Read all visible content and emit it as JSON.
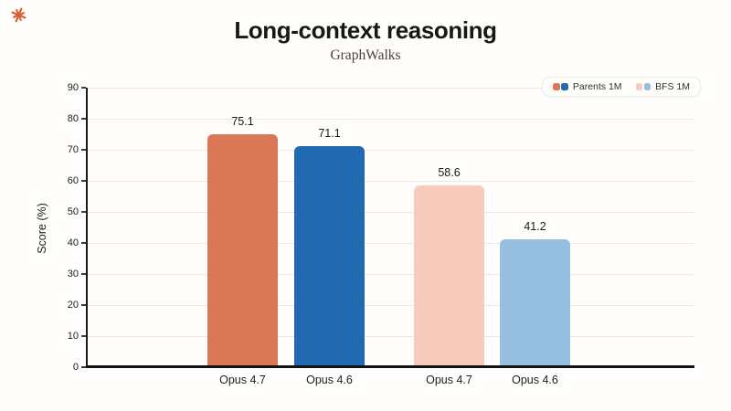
{
  "logo": {
    "name": "starburst-logo",
    "color": "#DA5A32"
  },
  "chart_data": {
    "type": "bar",
    "title": "Long-context reasoning",
    "subtitle": "GraphWalks",
    "xlabel": "",
    "ylabel": "Score (%)",
    "ylim": [
      0,
      90
    ],
    "yticks": [
      0,
      10,
      20,
      30,
      40,
      50,
      60,
      70,
      80,
      90
    ],
    "grid": true,
    "legend_position": "top-right",
    "categories": [
      "Opus 4.7",
      "Opus 4.6",
      "Opus 4.7",
      "Opus 4.6"
    ],
    "values": [
      75.1,
      71.1,
      58.6,
      41.2
    ],
    "series": [
      {
        "name": "Parents 1M",
        "bars": [
          {
            "label": "Opus 4.7",
            "value": 75.1,
            "color": "#D97757"
          },
          {
            "label": "Opus 4.6",
            "value": 71.1,
            "color": "#2169B0"
          }
        ]
      },
      {
        "name": "BFS 1M",
        "bars": [
          {
            "label": "Opus 4.7",
            "value": 58.6,
            "color": "#F7CCBD"
          },
          {
            "label": "Opus 4.6",
            "value": 41.2,
            "color": "#97BFE0"
          }
        ]
      }
    ]
  }
}
